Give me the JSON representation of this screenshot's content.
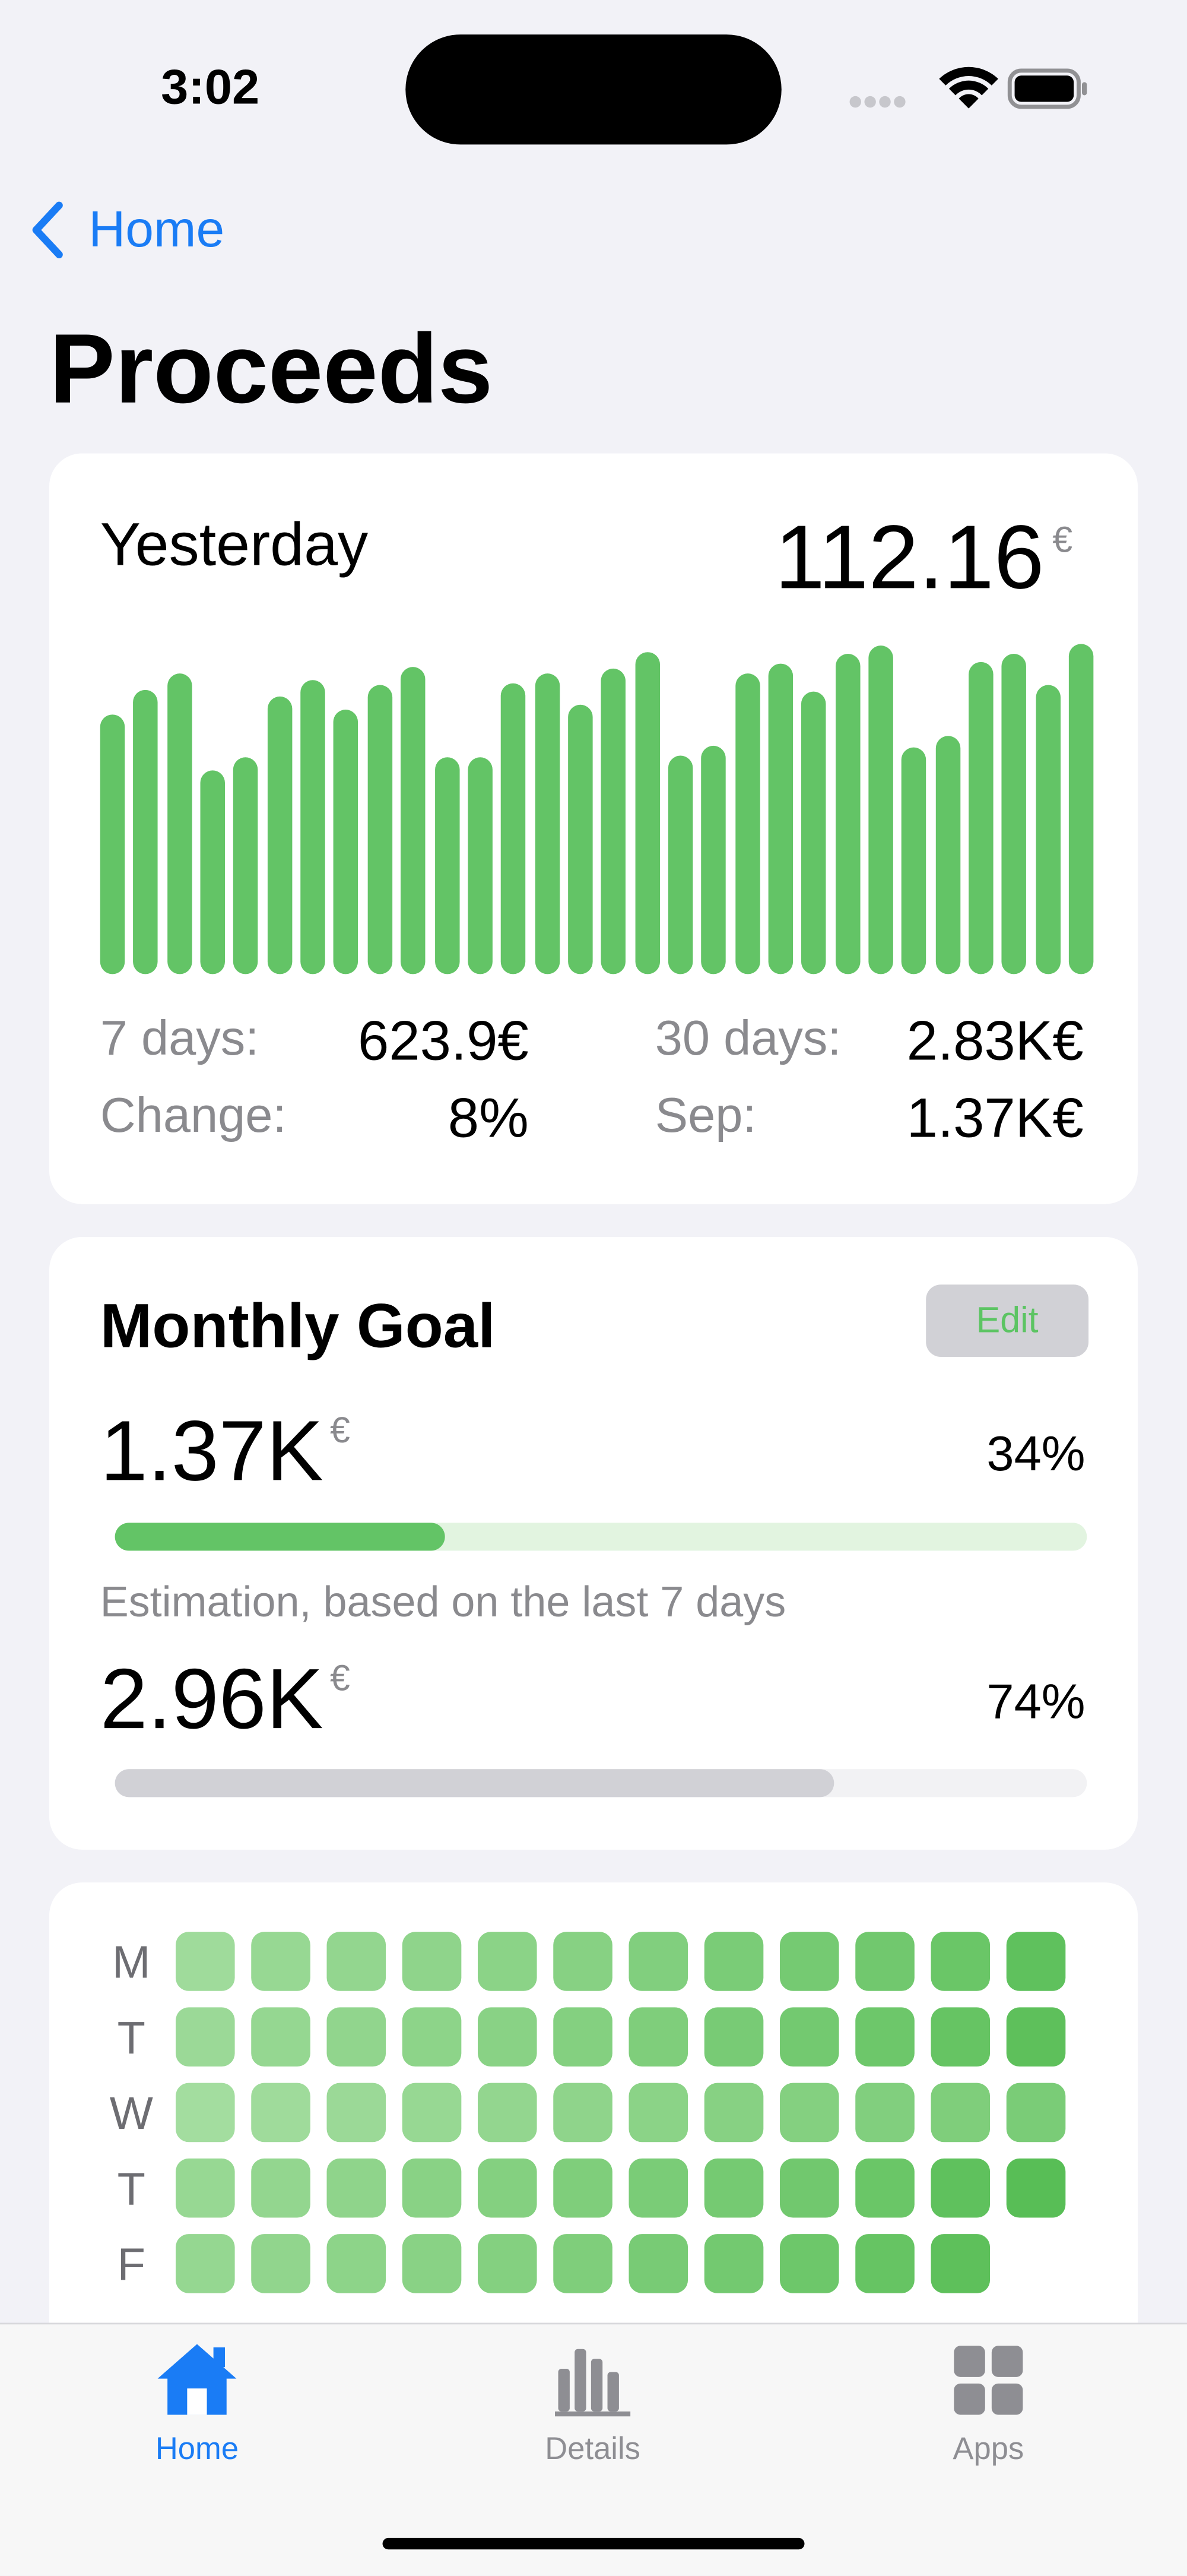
{
  "status_bar": {
    "time": "3:02"
  },
  "nav": {
    "back": "Home",
    "title": "Proceeds"
  },
  "yesterday_card": {
    "label": "Yesterday",
    "amount": "112.16",
    "currency": "€",
    "bars": {
      "color": "#63c466",
      "values": [
        158,
        173,
        183,
        124,
        132,
        169,
        179,
        161,
        176,
        187,
        132,
        132,
        177,
        183,
        164,
        186,
        196,
        133,
        139,
        183,
        189,
        172,
        195,
        200,
        138,
        145,
        190,
        195,
        176,
        201
      ]
    },
    "stats": [
      [
        "7 days:",
        "623.9€",
        "30 days:",
        "2.83K€"
      ],
      [
        "Change:",
        "8%",
        "Sep:",
        "1.37K€"
      ]
    ]
  },
  "goal_card": {
    "title": "Monthly Goal",
    "edit": "Edit",
    "current": {
      "amount": "1.37K",
      "currency": "€",
      "progress": {
        "value": 34,
        "label": "34%"
      },
      "color": "#63c466",
      "track": "#e2f4e0"
    },
    "note": "Estimation, based on the last 7 days",
    "estimate": {
      "amount": "2.96K",
      "currency": "€",
      "progress": {
        "value": 74,
        "label": "74%"
      },
      "color": "#d1d1d6",
      "track": "#f2f2f4"
    }
  },
  "heatmap": {
    "rows": [
      {
        "label": "M",
        "cells": [
          "#9fdb9b",
          "#97d893",
          "#93d68f",
          "#8fd48b",
          "#8bd387",
          "#87d183",
          "#81cf7e",
          "#7acc77",
          "#75ca72",
          "#71c86e",
          "#6ac667",
          "#5fc15d"
        ]
      },
      {
        "label": "T",
        "cells": [
          "#9bd997",
          "#95d791",
          "#91d58d",
          "#8dd489",
          "#89d285",
          "#84d080",
          "#7fce7b",
          "#78cb75",
          "#73c970",
          "#6dc76a",
          "#66c463",
          "#5ec05b"
        ]
      },
      {
        "label": "W",
        "cells": [
          "#a3dd9f",
          "#9fdb9b",
          "#9bd997",
          "#97d893",
          "#93d68f",
          "#8fd48b",
          "#8bd387",
          "#87d183",
          "#84d080",
          "#81cf7e",
          "#7fce7b",
          "#7acc77"
        ]
      },
      {
        "label": "T",
        "cells": [
          "#97d893",
          "#93d68f",
          "#8fd48b",
          "#89d285",
          "#84d080",
          "#7fce7b",
          "#7acc77",
          "#75ca72",
          "#71c86e",
          "#6ac667",
          "#5fc15d",
          "#58be56"
        ]
      },
      {
        "label": "F",
        "cells": [
          "#95d791",
          "#91d58d",
          "#8dd489",
          "#89d285",
          "#84d080",
          "#7fce7b",
          "#78cb75",
          "#73c970",
          "#6dc76a",
          "#66c463",
          "#5ec05b"
        ]
      }
    ]
  },
  "tab_bar": {
    "tabs": [
      "Home",
      "Details",
      "Apps"
    ]
  }
}
